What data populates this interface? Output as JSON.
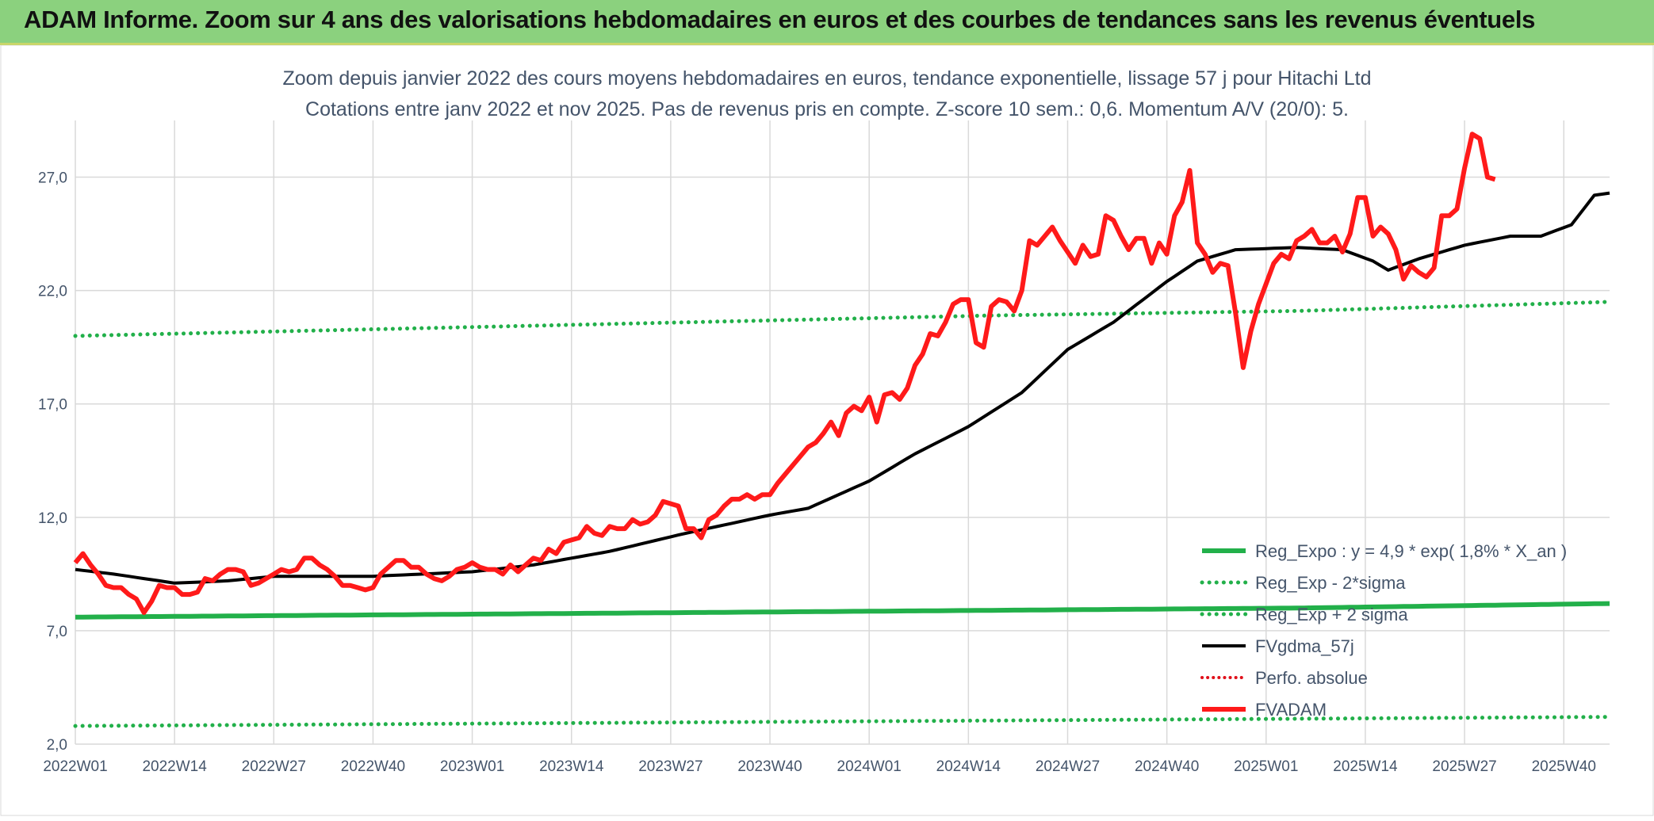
{
  "banner": {
    "title": "ADAM Informe. Zoom sur 4 ans des valorisations hebdomadaires en euros et des courbes de tendances sans les revenus éventuels"
  },
  "colors": {
    "banner_bg": "#8bd17e",
    "grid": "#d9d9d9",
    "text": "#44546a",
    "green": "#22b04a",
    "black": "#000000",
    "red": "#ff1a1a",
    "red_dotted": "#e0101a"
  },
  "chart_data": {
    "type": "line",
    "title": "Zoom depuis janvier 2022 des cours moyens hebdomadaires en euros, tendance exponentielle, lissage 57 j pour Hitachi Ltd",
    "subtitle": "Cotations entre janv 2022 et nov 2025. Pas de revenus pris en compte. Z-score 10 sem.: 0,6. Momentum A/V (20/0): 5.",
    "xlabel": "",
    "ylabel": "",
    "ylim": [
      2,
      29.5
    ],
    "yticks": [
      2,
      7,
      12,
      17,
      22,
      27
    ],
    "ytick_labels": [
      "2,0",
      "7,0",
      "12,0",
      "17,0",
      "22,0",
      "27,0"
    ],
    "x_count": 202,
    "xtick_indices": [
      0,
      13,
      26,
      39,
      52,
      65,
      78,
      91,
      104,
      117,
      130,
      143,
      156,
      169,
      182,
      195
    ],
    "xtick_labels": [
      "2022W01",
      "2022W14",
      "2022W27",
      "2022W40",
      "2023W01",
      "2023W14",
      "2023W27",
      "2023W40",
      "2024W01",
      "2024W14",
      "2024W27",
      "2024W40",
      "2025W01",
      "2025W14",
      "2025W27",
      "2025W40"
    ],
    "legend_position": "bottom-right",
    "series": [
      {
        "name": "Reg_Expo : y = 4,9 * exp( 1,8% *  X_an )",
        "style": "solid-green-thick",
        "keypoints": [
          [
            0,
            7.6
          ],
          [
            40,
            7.7
          ],
          [
            80,
            7.8
          ],
          [
            120,
            7.9
          ],
          [
            160,
            8.0
          ],
          [
            201,
            8.2
          ]
        ]
      },
      {
        "name": "Reg_Exp - 2*sigma",
        "style": "dotted-green",
        "keypoints": [
          [
            0,
            2.8
          ],
          [
            201,
            3.2
          ]
        ]
      },
      {
        "name": "Reg_Exp + 2 sigma",
        "style": "dotted-green",
        "keypoints": [
          [
            0,
            20.0
          ],
          [
            40,
            20.3
          ],
          [
            80,
            20.6
          ],
          [
            120,
            20.9
          ],
          [
            160,
            21.1
          ],
          [
            201,
            21.5
          ]
        ]
      },
      {
        "name": "FVgdma_57j",
        "style": "solid-black",
        "keypoints": [
          [
            0,
            9.7
          ],
          [
            5,
            9.5
          ],
          [
            13,
            9.1
          ],
          [
            20,
            9.2
          ],
          [
            26,
            9.4
          ],
          [
            39,
            9.4
          ],
          [
            52,
            9.6
          ],
          [
            60,
            9.9
          ],
          [
            70,
            10.5
          ],
          [
            80,
            11.3
          ],
          [
            91,
            12.1
          ],
          [
            96,
            12.4
          ],
          [
            104,
            13.6
          ],
          [
            110,
            14.8
          ],
          [
            117,
            16.0
          ],
          [
            124,
            17.5
          ],
          [
            130,
            19.4
          ],
          [
            136,
            20.6
          ],
          [
            143,
            22.4
          ],
          [
            147,
            23.3
          ],
          [
            152,
            23.8
          ],
          [
            160,
            23.9
          ],
          [
            166,
            23.8
          ],
          [
            170,
            23.3
          ],
          [
            172,
            22.9
          ],
          [
            176,
            23.4
          ],
          [
            182,
            24.0
          ],
          [
            188,
            24.4
          ],
          [
            192,
            24.4
          ],
          [
            196,
            24.9
          ],
          [
            199,
            26.2
          ],
          [
            201,
            26.3
          ]
        ]
      },
      {
        "name": "Perfo. absolue",
        "style": "dotted-red",
        "keypoints": []
      },
      {
        "name": "FVADAM",
        "style": "solid-red-thick",
        "keypoints": [
          [
            0,
            10.0
          ],
          [
            1,
            10.4
          ],
          [
            2,
            9.9
          ],
          [
            3,
            9.5
          ],
          [
            4,
            9.0
          ],
          [
            5,
            8.9
          ],
          [
            6,
            8.9
          ],
          [
            7,
            8.6
          ],
          [
            8,
            8.4
          ],
          [
            9,
            7.8
          ],
          [
            10,
            8.3
          ],
          [
            11,
            9.0
          ],
          [
            12,
            8.9
          ],
          [
            13,
            8.9
          ],
          [
            14,
            8.6
          ],
          [
            15,
            8.6
          ],
          [
            16,
            8.7
          ],
          [
            17,
            9.3
          ],
          [
            18,
            9.2
          ],
          [
            19,
            9.5
          ],
          [
            20,
            9.7
          ],
          [
            21,
            9.7
          ],
          [
            22,
            9.6
          ],
          [
            23,
            9.0
          ],
          [
            24,
            9.1
          ],
          [
            25,
            9.3
          ],
          [
            26,
            9.5
          ],
          [
            27,
            9.7
          ],
          [
            28,
            9.6
          ],
          [
            29,
            9.7
          ],
          [
            30,
            10.2
          ],
          [
            31,
            10.2
          ],
          [
            32,
            9.9
          ],
          [
            33,
            9.7
          ],
          [
            34,
            9.4
          ],
          [
            35,
            9.0
          ],
          [
            36,
            9.0
          ],
          [
            37,
            8.9
          ],
          [
            38,
            8.8
          ],
          [
            39,
            8.9
          ],
          [
            40,
            9.5
          ],
          [
            41,
            9.8
          ],
          [
            42,
            10.1
          ],
          [
            43,
            10.1
          ],
          [
            44,
            9.8
          ],
          [
            45,
            9.8
          ],
          [
            46,
            9.5
          ],
          [
            47,
            9.3
          ],
          [
            48,
            9.2
          ],
          [
            49,
            9.4
          ],
          [
            50,
            9.7
          ],
          [
            51,
            9.8
          ],
          [
            52,
            10.0
          ],
          [
            53,
            9.8
          ],
          [
            54,
            9.7
          ],
          [
            55,
            9.7
          ],
          [
            56,
            9.5
          ],
          [
            57,
            9.9
          ],
          [
            58,
            9.6
          ],
          [
            59,
            9.9
          ],
          [
            60,
            10.2
          ],
          [
            61,
            10.1
          ],
          [
            62,
            10.6
          ],
          [
            63,
            10.4
          ],
          [
            64,
            10.9
          ],
          [
            65,
            11.0
          ],
          [
            66,
            11.1
          ],
          [
            67,
            11.6
          ],
          [
            68,
            11.3
          ],
          [
            69,
            11.2
          ],
          [
            70,
            11.6
          ],
          [
            71,
            11.5
          ],
          [
            72,
            11.5
          ],
          [
            73,
            11.9
          ],
          [
            74,
            11.7
          ],
          [
            75,
            11.8
          ],
          [
            76,
            12.1
          ],
          [
            77,
            12.7
          ],
          [
            78,
            12.6
          ],
          [
            79,
            12.5
          ],
          [
            80,
            11.5
          ],
          [
            81,
            11.5
          ],
          [
            82,
            11.1
          ],
          [
            83,
            11.9
          ],
          [
            84,
            12.1
          ],
          [
            85,
            12.5
          ],
          [
            86,
            12.8
          ],
          [
            87,
            12.8
          ],
          [
            88,
            13.0
          ],
          [
            89,
            12.8
          ],
          [
            90,
            13.0
          ],
          [
            91,
            13.0
          ],
          [
            92,
            13.5
          ],
          [
            93,
            13.9
          ],
          [
            94,
            14.3
          ],
          [
            95,
            14.7
          ],
          [
            96,
            15.1
          ],
          [
            97,
            15.3
          ],
          [
            98,
            15.7
          ],
          [
            99,
            16.2
          ],
          [
            100,
            15.6
          ],
          [
            101,
            16.6
          ],
          [
            102,
            16.9
          ],
          [
            103,
            16.7
          ],
          [
            104,
            17.3
          ],
          [
            105,
            16.2
          ],
          [
            106,
            17.4
          ],
          [
            107,
            17.5
          ],
          [
            108,
            17.2
          ],
          [
            109,
            17.7
          ],
          [
            110,
            18.7
          ],
          [
            111,
            19.2
          ],
          [
            112,
            20.1
          ],
          [
            113,
            20.0
          ],
          [
            114,
            20.6
          ],
          [
            115,
            21.4
          ],
          [
            116,
            21.6
          ],
          [
            117,
            21.6
          ],
          [
            118,
            19.7
          ],
          [
            119,
            19.5
          ],
          [
            120,
            21.3
          ],
          [
            121,
            21.6
          ],
          [
            122,
            21.5
          ],
          [
            123,
            21.1
          ],
          [
            124,
            22.0
          ],
          [
            125,
            24.2
          ],
          [
            126,
            24.0
          ],
          [
            127,
            24.4
          ],
          [
            128,
            24.8
          ],
          [
            129,
            24.2
          ],
          [
            130,
            23.7
          ],
          [
            131,
            23.2
          ],
          [
            132,
            24.0
          ],
          [
            133,
            23.5
          ],
          [
            134,
            23.6
          ],
          [
            135,
            25.3
          ],
          [
            136,
            25.1
          ],
          [
            137,
            24.4
          ],
          [
            138,
            23.8
          ],
          [
            139,
            24.3
          ],
          [
            140,
            24.3
          ],
          [
            141,
            23.2
          ],
          [
            142,
            24.1
          ],
          [
            143,
            23.6
          ],
          [
            144,
            25.3
          ],
          [
            145,
            25.9
          ],
          [
            146,
            27.3
          ],
          [
            147,
            24.1
          ],
          [
            148,
            23.6
          ],
          [
            149,
            22.8
          ],
          [
            150,
            23.2
          ],
          [
            151,
            23.1
          ],
          [
            152,
            21.0
          ],
          [
            153,
            18.6
          ],
          [
            154,
            20.2
          ],
          [
            155,
            21.4
          ],
          [
            156,
            22.3
          ],
          [
            157,
            23.2
          ],
          [
            158,
            23.6
          ],
          [
            159,
            23.4
          ],
          [
            160,
            24.2
          ],
          [
            161,
            24.4
          ],
          [
            162,
            24.7
          ],
          [
            163,
            24.1
          ],
          [
            164,
            24.1
          ],
          [
            165,
            24.4
          ],
          [
            166,
            23.7
          ],
          [
            167,
            24.5
          ],
          [
            168,
            26.1
          ],
          [
            169,
            26.1
          ],
          [
            170,
            24.4
          ],
          [
            171,
            24.8
          ],
          [
            172,
            24.5
          ],
          [
            173,
            23.8
          ],
          [
            174,
            22.5
          ],
          [
            175,
            23.1
          ],
          [
            176,
            22.8
          ],
          [
            177,
            22.6
          ],
          [
            178,
            23.0
          ],
          [
            179,
            25.3
          ],
          [
            180,
            25.3
          ],
          [
            181,
            25.6
          ],
          [
            182,
            27.4
          ],
          [
            183,
            28.9
          ],
          [
            184,
            28.7
          ],
          [
            185,
            27.0
          ],
          [
            186,
            26.9
          ]
        ]
      }
    ]
  }
}
